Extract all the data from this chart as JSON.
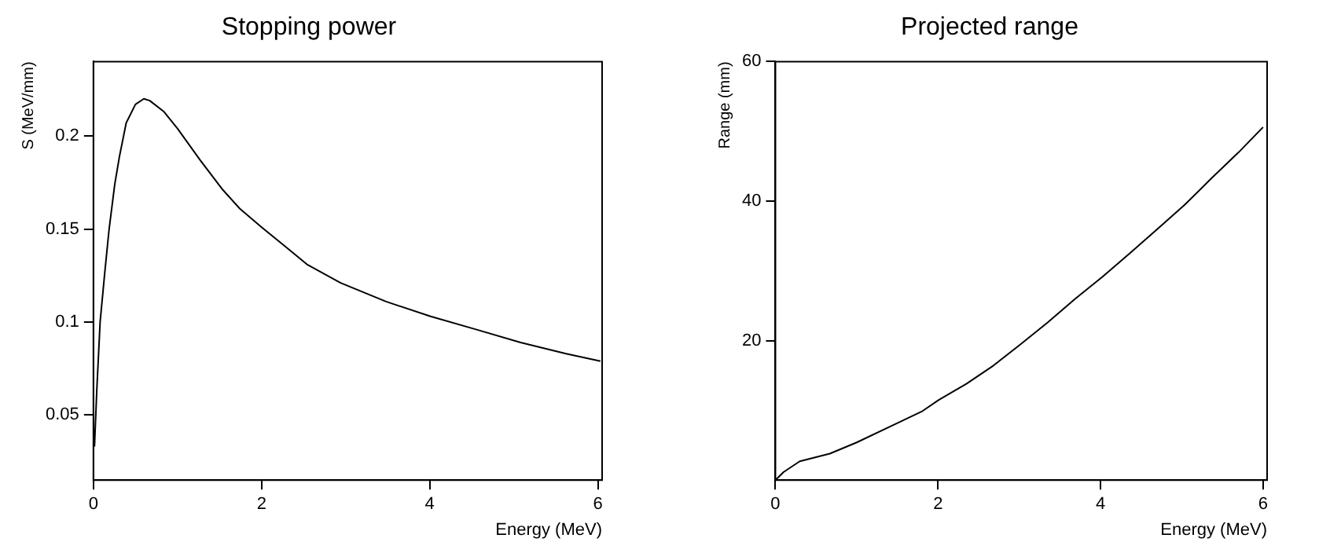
{
  "chart_data": [
    {
      "type": "line",
      "title": "Stopping power",
      "xlabel": "Energy (MeV)",
      "ylabel": "S (MeV/mm)",
      "color": "#000000",
      "marker": "none",
      "grid": false,
      "legend": false,
      "x": [
        0.013,
        0.04,
        0.08,
        0.134,
        0.187,
        0.254,
        0.31,
        0.39,
        0.5,
        0.6,
        0.67,
        0.84,
        1.0,
        1.27,
        1.54,
        1.74,
        2.0,
        2.27,
        2.54,
        2.94,
        3.48,
        4.01,
        4.55,
        5.08,
        5.62,
        6.03
      ],
      "values": [
        0.033,
        0.063,
        0.1,
        0.126,
        0.15,
        0.174,
        0.189,
        0.207,
        0.217,
        0.22,
        0.219,
        0.213,
        0.204,
        0.187,
        0.171,
        0.161,
        0.151,
        0.141,
        0.131,
        0.121,
        0.111,
        0.103,
        0.096,
        0.089,
        0.083,
        0.079
      ],
      "xlim": [
        0,
        6.05
      ],
      "ylim": [
        0.015,
        0.24
      ],
      "xticks": [
        0,
        2,
        4,
        6
      ],
      "yticks": [
        0.05,
        0.1,
        0.15,
        0.2
      ]
    },
    {
      "type": "line",
      "title": "Projected range",
      "xlabel": "Energy (MeV)",
      "ylabel": "Range (mm)",
      "color": "#000000",
      "marker": "none",
      "grid": false,
      "legend": false,
      "x": [
        0,
        0.1,
        0.3,
        0.67,
        1.0,
        1.47,
        1.81,
        2.01,
        2.35,
        2.68,
        3.02,
        3.35,
        3.69,
        4.02,
        4.36,
        4.69,
        5.03,
        5.36,
        5.7,
        6.0
      ],
      "values": [
        0,
        1.15,
        2.7,
        3.8,
        5.4,
        8.0,
        9.9,
        11.5,
        13.8,
        16.4,
        19.5,
        22.6,
        26.0,
        29.1,
        32.5,
        35.9,
        39.4,
        43.2,
        47.0,
        50.6
      ],
      "xlim": [
        0,
        6.05
      ],
      "ylim": [
        0,
        60
      ],
      "xticks": [
        0,
        2,
        4,
        6
      ],
      "yticks": [
        20,
        40,
        60
      ]
    }
  ]
}
